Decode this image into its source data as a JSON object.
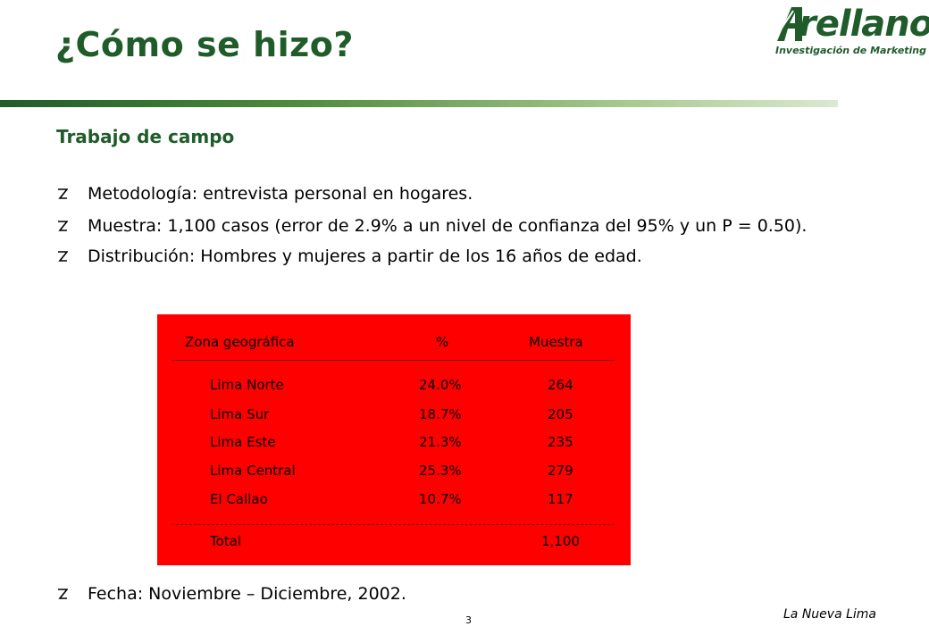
{
  "header": {
    "title": "¿Cómo se hizo?",
    "logo_word": "rellano",
    "logo_sub": "Investigación de Marketing",
    "brand_color": "#1f5c2a"
  },
  "section": {
    "subtitle": "Trabajo de campo",
    "bullets": [
      "Metodología: entrevista personal en hogares.",
      "Muestra: 1,100 casos (error de 2.9% a un nivel de confianza del 95% y un P = 0.50).",
      "Distribución: Hombres y mujeres a partir de los 16 años de edad."
    ],
    "final_bullet": "Fecha: Noviembre – Diciembre, 2002."
  },
  "table": {
    "background": "#ff0000",
    "headers": [
      "Zona geográfica",
      "%",
      "Muestra"
    ],
    "rows": [
      {
        "zona": "Lima Norte",
        "pct": "24.0%",
        "muestra": "264"
      },
      {
        "zona": "Lima Sur",
        "pct": "18.7%",
        "muestra": "205"
      },
      {
        "zona": "Lima Este",
        "pct": "21.3%",
        "muestra": "235"
      },
      {
        "zona": "Lima Central",
        "pct": "25.3%",
        "muestra": "279"
      },
      {
        "zona": "El Callao",
        "pct": "10.7%",
        "muestra": "117"
      }
    ],
    "total": {
      "label": "Total",
      "muestra": "1,100"
    }
  },
  "footer": {
    "page_number": "3",
    "brand": "La Nueva Lima"
  }
}
